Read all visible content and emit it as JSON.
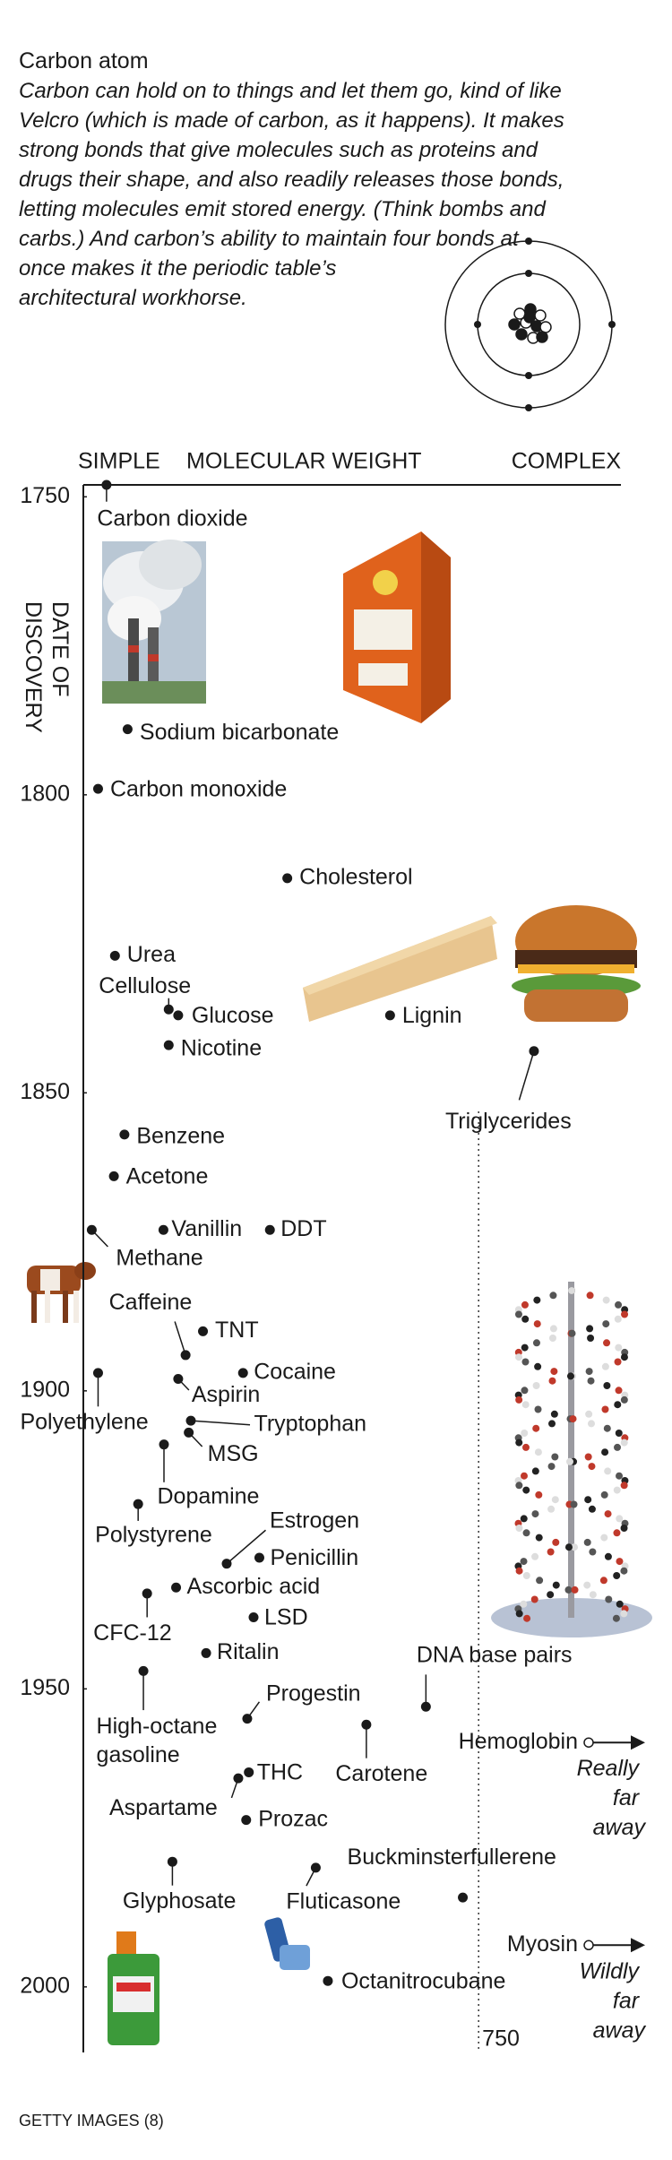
{
  "chart_data": {
    "type": "scatter",
    "title": "Carbon atom",
    "subtitle": "Carbon can hold on to things and let them go, kind of like Velcro (which is made of carbon, as it happens). It makes strong bonds that give molecules such as proteins and drugs their shape, and also readily releases those bonds, letting molecules emit stored energy. (Think bombs and carbs.) And carbon’s ability to maintain four bonds at once makes it the periodic table’s architectural workhorse.",
    "x_left_label": "SIMPLE",
    "xlabel": "MOLECULAR WEIGHT",
    "x_right_label": "COMPLEX",
    "ylabel": "DATE OF DISCOVERY",
    "xlim": [
      0,
      1020
    ],
    "xticks": [
      750
    ],
    "ylim": [
      1748,
      2011
    ],
    "yticks": [
      1750,
      1800,
      1850,
      1900,
      1950,
      2000
    ],
    "y_reversed": true,
    "color": "#1a1a1a",
    "labels": [
      "Carbon dioxide",
      "Sodium bicarbonate",
      "Carbon monoxide",
      "Cholesterol",
      "Urea",
      "Cellulose",
      "Glucose",
      "Nicotine",
      "Lignin",
      "Triglycerides",
      "Benzene",
      "Acetone",
      "Methane",
      "Vanillin",
      "DDT",
      "Caffeine",
      "TNT",
      "Cocaine",
      "Aspirin",
      "Polyethylene",
      "Tryptophan",
      "MSG",
      "Dopamine",
      "Polystyrene",
      "Penicillin",
      "Estrogen",
      "Ascorbic acid",
      "CFC-12",
      "LSD",
      "Ritalin",
      "High-octane gasoline",
      "DNA base pairs",
      "Progestin",
      "Carotene",
      "THC",
      "Aspartame",
      "Prozac",
      "Glyphosate",
      "Fluticasone",
      "Buckminsterfullerene",
      "Octanitrocubane"
    ],
    "x": [
      44,
      84,
      28,
      387,
      60,
      162,
      180,
      162,
      582,
      855,
      78,
      58,
      16,
      152,
      354,
      194,
      227,
      303,
      180,
      28,
      204,
      200,
      153,
      104,
      334,
      272,
      176,
      121,
      323,
      233,
      114,
      650,
      311,
      537,
      314,
      294,
      309,
      169,
      441,
      720,
      464
    ],
    "y": [
      1748,
      1789,
      1799,
      1814,
      1827,
      1836,
      1837,
      1842,
      1837,
      1843,
      1857,
      1864,
      1873,
      1873,
      1873,
      1894,
      1890,
      1897,
      1898,
      1897,
      1905,
      1907,
      1909,
      1919,
      1928,
      1929,
      1933,
      1934,
      1938,
      1944,
      1947,
      1953,
      1955,
      1956,
      1964,
      1965,
      1972,
      1979,
      1980,
      1985,
      1999
    ],
    "offscale": [
      {
        "label": "Hemoglobin",
        "y": 1959,
        "note": "Really far away"
      },
      {
        "label": "Myosin",
        "y": 1993,
        "note": "Wildly far away"
      }
    ],
    "credit": "GETTY IMAGES (8)"
  }
}
